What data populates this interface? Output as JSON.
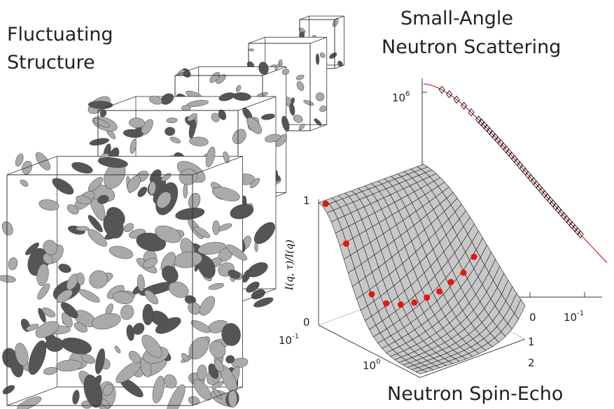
{
  "left_title": [
    "Fluctuating",
    "Structure"
  ],
  "sans": {
    "title": [
      "Small-Angle",
      "Neutron Scattering"
    ],
    "y_tick": {
      "base": "10",
      "exp": "6"
    },
    "x_ticks": [
      "0",
      {
        "base": "10",
        "exp": "-1"
      }
    ]
  },
  "nse": {
    "title": "Neutron Spin-Echo",
    "z_label": "I(q, τ)/I(q)",
    "z_ticks": [
      "1",
      "0"
    ],
    "q_ticks": [
      {
        "base": "10",
        "exp": "-1"
      },
      {
        "base": "10",
        "exp": "0"
      }
    ],
    "tau_ticks": [
      "1",
      "2"
    ]
  }
}
